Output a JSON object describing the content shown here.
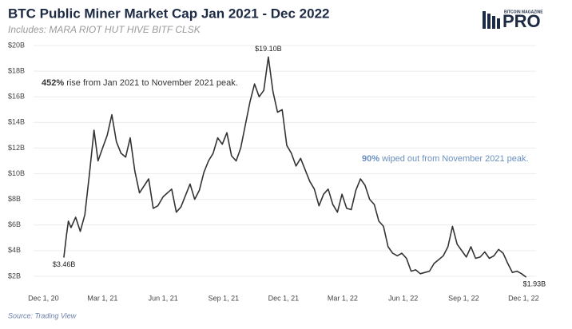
{
  "chart_data": {
    "type": "line",
    "title": "BTC Public Miner Market Cap Jan 2021 - Dec 2022",
    "subtitle": "Includes: MARA RIOT HUT HIVE BITF CLSK",
    "source": "Source: Trading View",
    "logo": {
      "small": "BITCOIN MAGAZINE",
      "big": "PRO"
    },
    "annotations": [
      {
        "bold": "452%",
        "text": " rise from Jan 2021 to November 2021 peak."
      },
      {
        "bold": "90%",
        "text": " wiped out from November 2021 peak.",
        "color": "#6a8fc0"
      }
    ],
    "color": "#333333",
    "grid": true,
    "xlim": [
      "2020-11-16",
      "2022-12-20"
    ],
    "xticks": [
      {
        "value": "2020-12-01",
        "label": "Dec 1, 20"
      },
      {
        "value": "2021-03-01",
        "label": "Mar 1, 21"
      },
      {
        "value": "2021-06-01",
        "label": "Jun 1, 21"
      },
      {
        "value": "2021-09-01",
        "label": "Sep 1, 21"
      },
      {
        "value": "2021-12-01",
        "label": "Dec 1, 21"
      },
      {
        "value": "2022-03-01",
        "label": "Mar 1, 22"
      },
      {
        "value": "2022-06-01",
        "label": "Jun 1, 22"
      },
      {
        "value": "2022-09-01",
        "label": "Sep 1, 22"
      },
      {
        "value": "2022-12-01",
        "label": "Dec 1, 22"
      }
    ],
    "ylim": [
      1.5,
      20
    ],
    "yticks": [
      {
        "value": 2,
        "label": "$2B"
      },
      {
        "value": 4,
        "label": "$4B"
      },
      {
        "value": 6,
        "label": "$6B"
      },
      {
        "value": 8,
        "label": "$8B"
      },
      {
        "value": 10,
        "label": "$10B"
      },
      {
        "value": 12,
        "label": "$12B"
      },
      {
        "value": 14,
        "label": "$14B"
      },
      {
        "value": 16,
        "label": "$16B"
      },
      {
        "value": 18,
        "label": "$18B"
      },
      {
        "value": 20,
        "label": "$20B"
      }
    ],
    "x": [
      "2021-01-01",
      "2021-01-05",
      "2021-01-08",
      "2021-01-12",
      "2021-01-19",
      "2021-01-26",
      "2021-02-02",
      "2021-02-09",
      "2021-02-16",
      "2021-02-22",
      "2021-03-01",
      "2021-03-08",
      "2021-03-15",
      "2021-03-22",
      "2021-03-29",
      "2021-04-05",
      "2021-04-12",
      "2021-04-19",
      "2021-04-26",
      "2021-05-10",
      "2021-05-17",
      "2021-05-24",
      "2021-06-01",
      "2021-06-14",
      "2021-06-21",
      "2021-06-28",
      "2021-07-12",
      "2021-07-19",
      "2021-07-26",
      "2021-08-02",
      "2021-08-09",
      "2021-08-16",
      "2021-08-23",
      "2021-08-30",
      "2021-09-06",
      "2021-09-13",
      "2021-09-20",
      "2021-09-27",
      "2021-10-04",
      "2021-10-11",
      "2021-10-18",
      "2021-10-25",
      "2021-11-01",
      "2021-11-08",
      "2021-11-15",
      "2021-11-22",
      "2021-11-29",
      "2021-12-06",
      "2021-12-13",
      "2021-12-20",
      "2021-12-27",
      "2022-01-03",
      "2022-01-10",
      "2022-01-17",
      "2022-01-24",
      "2022-01-31",
      "2022-02-07",
      "2022-02-14",
      "2022-02-21",
      "2022-02-28",
      "2022-03-07",
      "2022-03-14",
      "2022-03-21",
      "2022-03-28",
      "2022-04-04",
      "2022-04-11",
      "2022-04-18",
      "2022-04-25",
      "2022-05-02",
      "2022-05-09",
      "2022-05-16",
      "2022-05-23",
      "2022-05-30",
      "2022-06-06",
      "2022-06-13",
      "2022-06-20",
      "2022-06-27",
      "2022-07-04",
      "2022-07-11",
      "2022-07-18",
      "2022-07-25",
      "2022-08-01",
      "2022-08-08",
      "2022-08-15",
      "2022-08-22",
      "2022-08-29",
      "2022-09-05",
      "2022-09-12",
      "2022-09-19",
      "2022-09-26",
      "2022-10-03",
      "2022-10-10",
      "2022-10-17",
      "2022-10-24",
      "2022-10-31",
      "2022-11-07",
      "2022-11-14",
      "2022-11-21",
      "2022-11-28",
      "2022-12-05"
    ],
    "values": [
      3.46,
      5.2,
      6.3,
      5.8,
      6.6,
      5.5,
      6.8,
      10.0,
      13.4,
      11.0,
      12.0,
      13.0,
      14.6,
      12.5,
      11.6,
      11.3,
      12.8,
      10.2,
      8.5,
      9.6,
      7.3,
      7.5,
      8.2,
      8.8,
      7.0,
      7.4,
      9.2,
      8.0,
      8.7,
      10.1,
      11.0,
      11.6,
      12.8,
      12.3,
      13.2,
      11.4,
      11.0,
      12.0,
      13.8,
      15.6,
      17.0,
      16.0,
      16.5,
      19.1,
      16.4,
      14.8,
      15.0,
      12.2,
      11.6,
      10.6,
      11.2,
      10.3,
      9.4,
      8.8,
      7.5,
      8.4,
      8.8,
      7.6,
      7.0,
      8.4,
      7.3,
      7.2,
      8.7,
      9.6,
      9.1,
      8.0,
      7.6,
      6.3,
      5.9,
      4.3,
      3.8,
      3.6,
      3.8,
      3.4,
      2.4,
      2.5,
      2.2,
      2.3,
      2.4,
      3.0,
      3.3,
      3.6,
      4.3,
      5.9,
      4.5,
      4.0,
      3.5,
      4.3,
      3.4,
      3.5,
      3.9,
      3.4,
      3.6,
      4.1,
      3.8,
      3.0,
      2.3,
      2.4,
      2.2,
      1.93
    ],
    "value_labels": [
      "$3.46B",
      null,
      null,
      null,
      null,
      null,
      null,
      null,
      null,
      null,
      null,
      null,
      null,
      null,
      null,
      null,
      null,
      null,
      null,
      null,
      null,
      null,
      null,
      null,
      null,
      null,
      null,
      null,
      null,
      null,
      null,
      null,
      null,
      null,
      null,
      null,
      null,
      null,
      null,
      null,
      null,
      null,
      null,
      "$19.10B",
      null,
      null,
      null,
      null,
      null,
      null,
      null,
      null,
      null,
      null,
      null,
      null,
      null,
      null,
      null,
      null,
      null,
      null,
      null,
      null,
      null,
      null,
      null,
      null,
      null,
      null,
      null,
      null,
      null,
      null,
      null,
      null,
      null,
      null,
      null,
      null,
      null,
      null,
      null,
      null,
      null,
      null,
      null,
      null,
      null,
      null,
      null,
      null,
      null,
      null,
      null,
      null,
      null,
      null,
      null,
      "$1.93B"
    ]
  }
}
